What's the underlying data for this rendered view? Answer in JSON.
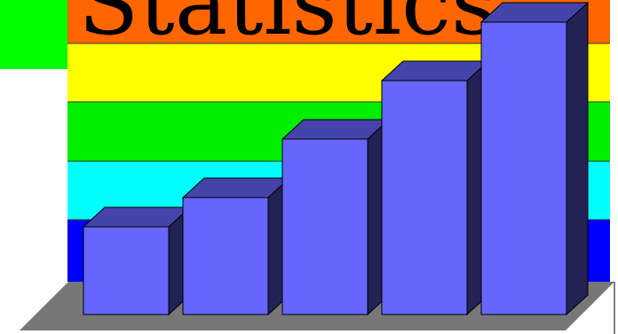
{
  "colors": {
    "background": "#ffffff",
    "green_corner": "#00ff00",
    "band_orange": "#ff6600",
    "band_yellow": "#ffff00",
    "band_green": "#00ee00",
    "band_cyan": "#00ffff",
    "band_blue": "#0000ff",
    "floor": "#777777",
    "bar_front": "#6666ff",
    "bar_top": "#4444aa",
    "bar_side": "#222255"
  },
  "chart_data": {
    "type": "bar",
    "title": "Statistics",
    "xlabel": "",
    "ylabel": "",
    "ylim": [
      0,
      5
    ],
    "grid": false,
    "legend": "none",
    "categories": [
      "",
      "",
      "",
      "",
      ""
    ],
    "values": [
      1.5,
      2.0,
      3.0,
      4.0,
      5.0
    ]
  }
}
